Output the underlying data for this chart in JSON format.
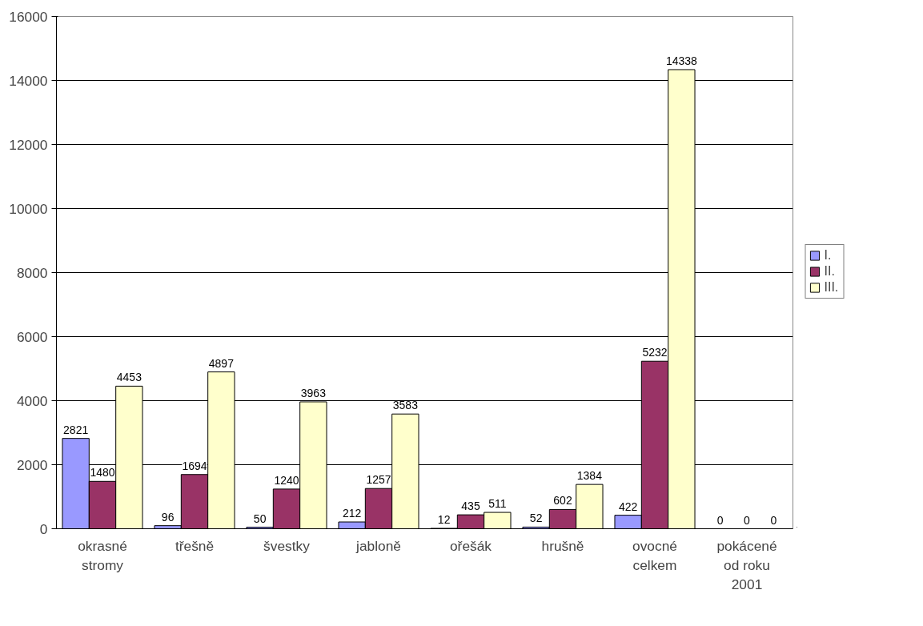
{
  "chart_data": {
    "type": "bar",
    "categories": [
      "okrasné stromy",
      "třešně",
      "švestky",
      "jabloně",
      "ořešák",
      "hrušně",
      "ovocné celkem",
      "pokácené od roku 2001"
    ],
    "series": [
      {
        "name": "I.",
        "color": "#9999ff",
        "values": [
          2821,
          96,
          50,
          212,
          12,
          52,
          422,
          0
        ]
      },
      {
        "name": "II.",
        "color": "#993366",
        "values": [
          1480,
          1694,
          1240,
          1257,
          435,
          602,
          5232,
          0
        ]
      },
      {
        "name": "III.",
        "color": "#ffffcc",
        "values": [
          4453,
          4897,
          3963,
          3583,
          511,
          1384,
          14338,
          0
        ]
      }
    ],
    "ylim": [
      0,
      16000
    ],
    "yticks": [
      0,
      2000,
      4000,
      6000,
      8000,
      10000,
      12000,
      14000,
      16000
    ],
    "grid": "y",
    "legend": "right",
    "data_labels": true
  }
}
